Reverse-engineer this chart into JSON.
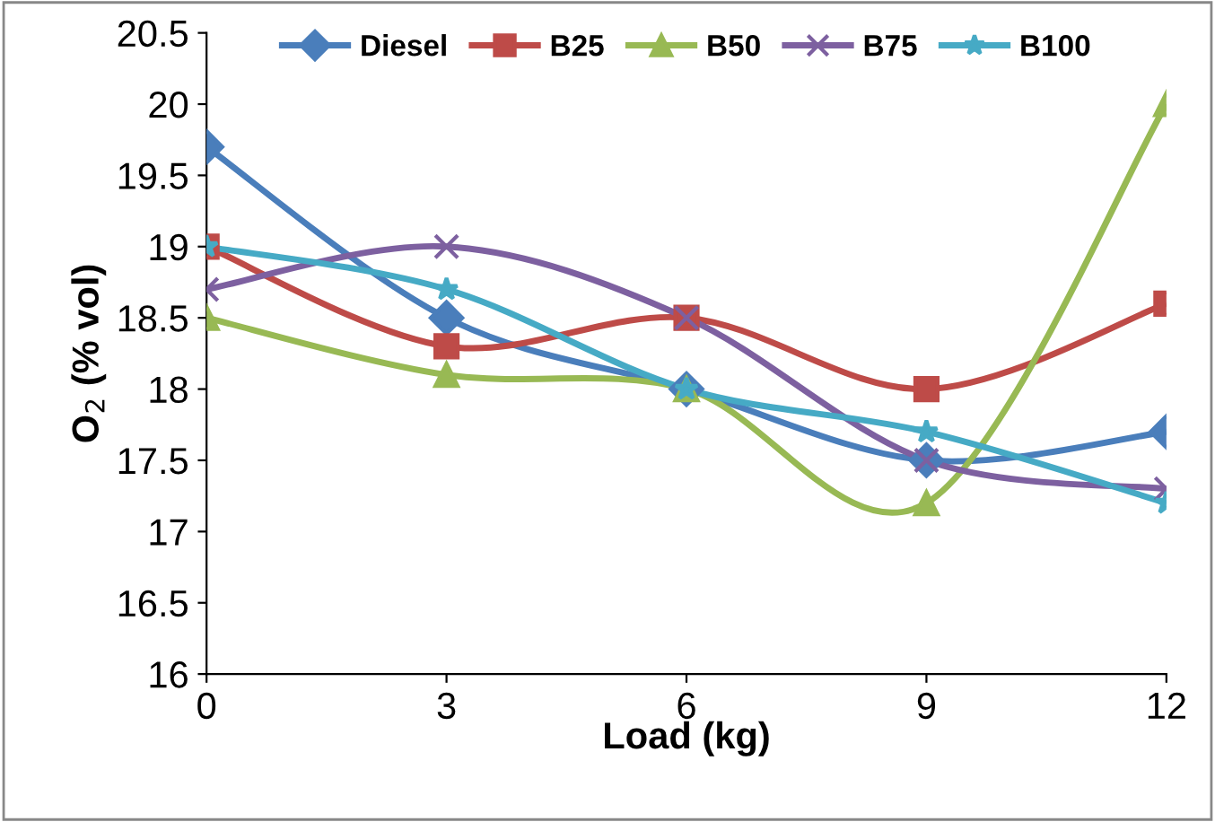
{
  "chart_data": {
    "type": "line",
    "xlabel": "Load (kg)",
    "ylabel": "O$_{2}$ (% vol)",
    "x": [
      0,
      3,
      6,
      9,
      12
    ],
    "xlim": [
      0,
      12
    ],
    "xticks": [
      0,
      3,
      6,
      9,
      12
    ],
    "ylim": [
      16,
      20.5
    ],
    "yticks": [
      16,
      16.5,
      17,
      17.5,
      18,
      18.5,
      19,
      19.5,
      20,
      20.5
    ],
    "grid": false,
    "legend": "top",
    "series": [
      {
        "name": "Diesel",
        "color": "#4a7ebb",
        "marker": "diamond",
        "values": [
          19.7,
          18.5,
          18.0,
          17.5,
          17.7
        ]
      },
      {
        "name": "B25",
        "color": "#be4b48",
        "marker": "square",
        "values": [
          19.0,
          18.3,
          18.5,
          18.0,
          18.6
        ]
      },
      {
        "name": "B50",
        "color": "#98b954",
        "marker": "triangle",
        "values": [
          18.5,
          18.1,
          18.0,
          17.2,
          20.0
        ]
      },
      {
        "name": "B75",
        "color": "#7d60a0",
        "marker": "cross",
        "values": [
          18.7,
          19.0,
          18.5,
          17.5,
          17.3
        ]
      },
      {
        "name": "B100",
        "color": "#46aac5",
        "marker": "star",
        "values": [
          19.0,
          18.7,
          18.0,
          17.7,
          17.2
        ]
      }
    ]
  }
}
